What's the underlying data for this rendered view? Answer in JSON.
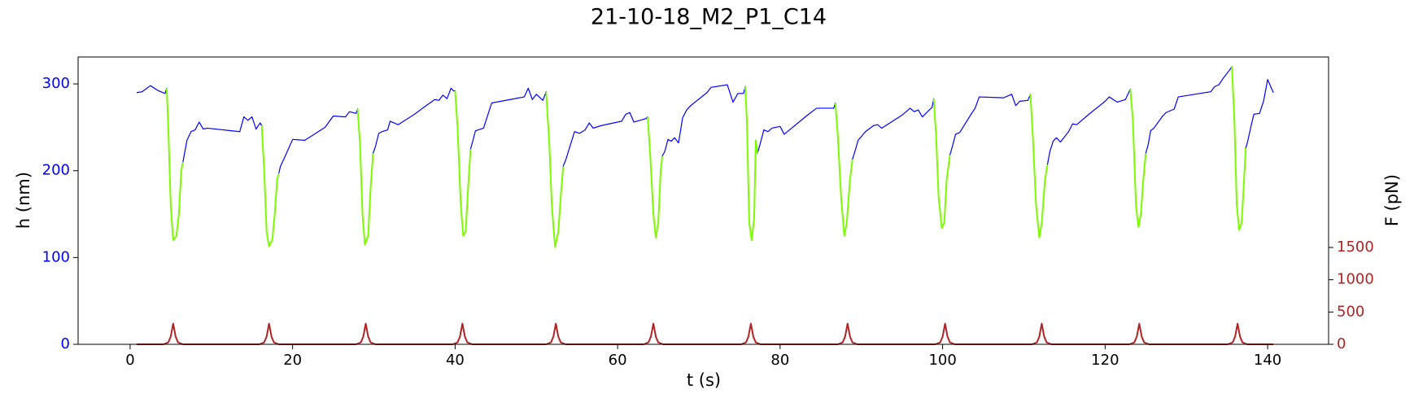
{
  "chart_data": {
    "type": "line",
    "title": "21-10-18_M2_P1_C14",
    "xlabel": "t (s)",
    "ylabel": "h (nm)",
    "y2label": "F (pN)",
    "xlim": [
      -6.4,
      147.5
    ],
    "xticks": [
      0,
      20,
      40,
      60,
      80,
      100,
      120,
      140
    ],
    "ylim": [
      0,
      331
    ],
    "yticks": [
      0,
      100,
      200,
      300
    ],
    "y2lim": [
      0,
      4450
    ],
    "y2ticks": [
      0,
      500,
      1000,
      1500
    ],
    "ycolor": "#0000ff",
    "y2color": "#b22222",
    "x": [
      0.8,
      1.5,
      2.5,
      3.5,
      4.3,
      4.5,
      4.7,
      5.0,
      5.3,
      5.7,
      6.0,
      6.3,
      6.5,
      7.0,
      7.5,
      8.0,
      8.5,
      9.0,
      9.5,
      13.5,
      14.0,
      14.5,
      15.0,
      15.5,
      16.0,
      16.2,
      16.5,
      16.8,
      17.1,
      17.5,
      17.8,
      18.1,
      18.3,
      18.5,
      19,
      20,
      21.5,
      24,
      25,
      26.5,
      27,
      27.8,
      28,
      28.3,
      28.6,
      28.9,
      29.3,
      29.6,
      29.9,
      30.2,
      30.6,
      31,
      31.7,
      32,
      33,
      35,
      36,
      37.5,
      38,
      38.5,
      39,
      39.5,
      39.8,
      40,
      40.3,
      40.7,
      41,
      41.3,
      41.6,
      41.9,
      42.2,
      42.5,
      43.5,
      44.5,
      48.5,
      49,
      49.5,
      50,
      50.8,
      51.2,
      51.6,
      51.9,
      52.3,
      52.7,
      53,
      53.3,
      53.6,
      54.2,
      54.7,
      55.3,
      56,
      56.5,
      57,
      58,
      60.5,
      61,
      61.5,
      62,
      63.5,
      63.7,
      64,
      64.4,
      64.7,
      65,
      65.3,
      65.5,
      65.8,
      66.2,
      66.6,
      67,
      67.5,
      68,
      68.5,
      69,
      71,
      71.5,
      73.5,
      74.2,
      74.8,
      75.5,
      75.7,
      75.9,
      76.2,
      76.5,
      76.8,
      77,
      77.2,
      77.4,
      78,
      78.5,
      79,
      80,
      80.5,
      83.5,
      84.5,
      86.6,
      86.8,
      87.1,
      87.5,
      87.9,
      88.2,
      88.6,
      88.9,
      89.2,
      89.6,
      90.5,
      91.5,
      92,
      92.5,
      95,
      96,
      96.5,
      97,
      97.5,
      98.7,
      98.9,
      99.2,
      99.5,
      99.9,
      100.2,
      100.5,
      100.9,
      101.2,
      101.6,
      102.1,
      103.5,
      104,
      104.5,
      107.5,
      108.5,
      109,
      109.5,
      110.5,
      110.8,
      111.1,
      111.5,
      111.9,
      112.2,
      112.6,
      112.9,
      113.2,
      113.6,
      114,
      114.5,
      115.5,
      116,
      116.5,
      118,
      120,
      120.5,
      121.5,
      122.5,
      122.9,
      123.1,
      123.4,
      123.8,
      124.1,
      124.4,
      124.7,
      125,
      125.3,
      125.6,
      126,
      127,
      127.5,
      128.5,
      129,
      133,
      133.5,
      134,
      134.5,
      135.4,
      135.6,
      135.9,
      136.2,
      136.5,
      136.8,
      137.1,
      137.3,
      137.5,
      138,
      138.3,
      139,
      139.5,
      140,
      140.7
    ],
    "series": [
      {
        "color": "#0000ff",
        "width": 1.2,
        "values": [
          290,
          291,
          298,
          292,
          289,
          295,
          250,
          160,
          120,
          125,
          150,
          200,
          210,
          235,
          245,
          247,
          256,
          248,
          249,
          245,
          262,
          258,
          262,
          248,
          255,
          252,
          200,
          130,
          113,
          120,
          150,
          190,
          197,
          205,
          215,
          236,
          235,
          250,
          263,
          262,
          268,
          266,
          271,
          230,
          150,
          115,
          125,
          180,
          220,
          228,
          243,
          245,
          247,
          257,
          253,
          265,
          272,
          282,
          281,
          287,
          283,
          295,
          292,
          292,
          250,
          160,
          125,
          130,
          180,
          225,
          235,
          246,
          249,
          278,
          285,
          295,
          282,
          288,
          281,
          291,
          230,
          160,
          112,
          130,
          170,
          205,
          212,
          230,
          245,
          243,
          247,
          255,
          249,
          252,
          257,
          265,
          267,
          256,
          260,
          262,
          220,
          150,
          123,
          140,
          200,
          217,
          222,
          236,
          234,
          238,
          232,
          261,
          270,
          275,
          290,
          296,
          299,
          279,
          289,
          289,
          297,
          260,
          140,
          120,
          145,
          235,
          220,
          226,
          247,
          245,
          249,
          251,
          242,
          265,
          272,
          272,
          278,
          240,
          170,
          125,
          140,
          190,
          213,
          222,
          235,
          245,
          252,
          253,
          249,
          264,
          272,
          268,
          270,
          262,
          273,
          283,
          240,
          170,
          134,
          140,
          190,
          218,
          228,
          242,
          244,
          265,
          272,
          285,
          284,
          288,
          275,
          280,
          281,
          288,
          240,
          160,
          123,
          140,
          190,
          207,
          222,
          234,
          238,
          233,
          245,
          254,
          253,
          265,
          280,
          285,
          279,
          282,
          290,
          294,
          260,
          160,
          135,
          150,
          190,
          220,
          230,
          246,
          249,
          262,
          267,
          271,
          285,
          291,
          297,
          299,
          306,
          317,
          320,
          260,
          160,
          132,
          140,
          190,
          226,
          232,
          253,
          265,
          266,
          280,
          305,
          290
        ]
      },
      {
        "color": "#7cfc00",
        "width": 2,
        "values": [
          null,
          null,
          null,
          null,
          null,
          295,
          250,
          160,
          120,
          125,
          150,
          200,
          210,
          null,
          null,
          null,
          null,
          null,
          null,
          null,
          null,
          null,
          null,
          null,
          null,
          252,
          200,
          130,
          113,
          120,
          150,
          190,
          197,
          null,
          null,
          null,
          null,
          null,
          null,
          null,
          null,
          null,
          271,
          230,
          150,
          115,
          125,
          180,
          220,
          null,
          null,
          null,
          null,
          null,
          null,
          null,
          null,
          null,
          null,
          null,
          null,
          null,
          null,
          292,
          250,
          160,
          125,
          130,
          180,
          225,
          null,
          null,
          null,
          null,
          null,
          null,
          null,
          null,
          null,
          291,
          230,
          160,
          112,
          130,
          170,
          205,
          null,
          null,
          null,
          null,
          null,
          null,
          null,
          null,
          null,
          null,
          null,
          null,
          null,
          262,
          220,
          150,
          123,
          140,
          200,
          217,
          null,
          null,
          null,
          null,
          null,
          null,
          null,
          null,
          null,
          null,
          null,
          null,
          null,
          null,
          297,
          260,
          140,
          120,
          145,
          235,
          220,
          null,
          null,
          null,
          null,
          null,
          null,
          null,
          null,
          null,
          278,
          240,
          170,
          125,
          140,
          190,
          213,
          null,
          null,
          null,
          null,
          null,
          null,
          null,
          null,
          null,
          null,
          null,
          null,
          283,
          240,
          170,
          134,
          140,
          190,
          218,
          null,
          null,
          null,
          null,
          null,
          null,
          null,
          null,
          null,
          null,
          null,
          288,
          240,
          160,
          123,
          140,
          190,
          207,
          null,
          null,
          null,
          null,
          null,
          null,
          null,
          null,
          null,
          null,
          null,
          null,
          null,
          294,
          260,
          160,
          135,
          150,
          190,
          220,
          null,
          null,
          null,
          null,
          null,
          null,
          null,
          null,
          null,
          null,
          null,
          null,
          320,
          260,
          160,
          132,
          140,
          190,
          226,
          null,
          null,
          null,
          null,
          null,
          null,
          null
        ]
      },
      {
        "color": "#b22222",
        "width": 2,
        "axis": "y2",
        "x": [
          0.8,
          4.1,
          4.7,
          5.0,
          5.3,
          5.6,
          5.9,
          6.5,
          15.9,
          16.5,
          16.8,
          17.1,
          17.4,
          17.7,
          18.3,
          27.8,
          28.4,
          28.7,
          29.0,
          29.3,
          29.6,
          30.2,
          39.7,
          40.3,
          40.6,
          40.9,
          41.2,
          41.5,
          42.1,
          51.2,
          51.8,
          52.1,
          52.4,
          52.7,
          53.0,
          53.6,
          63.2,
          63.8,
          64.1,
          64.4,
          64.7,
          65.0,
          65.6,
          75.2,
          75.8,
          76.1,
          76.4,
          76.7,
          77.0,
          77.6,
          87.1,
          87.7,
          88.0,
          88.3,
          88.6,
          88.9,
          89.5,
          99.1,
          99.7,
          100.0,
          100.3,
          100.6,
          100.9,
          101.5,
          111.0,
          111.6,
          111.9,
          112.2,
          112.5,
          112.8,
          113.4,
          123.0,
          123.6,
          123.9,
          124.2,
          124.5,
          124.8,
          125.4,
          135.1,
          135.7,
          136.0,
          136.3,
          136.6,
          136.9,
          137.5,
          140.7
        ],
        "values": [
          0,
          0,
          30,
          120,
          320,
          120,
          30,
          0,
          0,
          30,
          120,
          320,
          120,
          30,
          0,
          0,
          30,
          120,
          320,
          120,
          30,
          0,
          0,
          30,
          120,
          320,
          120,
          30,
          0,
          0,
          30,
          120,
          320,
          120,
          30,
          0,
          0,
          30,
          120,
          320,
          120,
          30,
          0,
          0,
          30,
          120,
          320,
          120,
          30,
          0,
          0,
          30,
          120,
          320,
          120,
          30,
          0,
          0,
          30,
          120,
          320,
          120,
          30,
          0,
          0,
          30,
          120,
          320,
          120,
          30,
          0,
          0,
          30,
          120,
          320,
          120,
          30,
          0,
          0,
          30,
          120,
          320,
          120,
          30,
          0,
          0
        ]
      }
    ]
  }
}
